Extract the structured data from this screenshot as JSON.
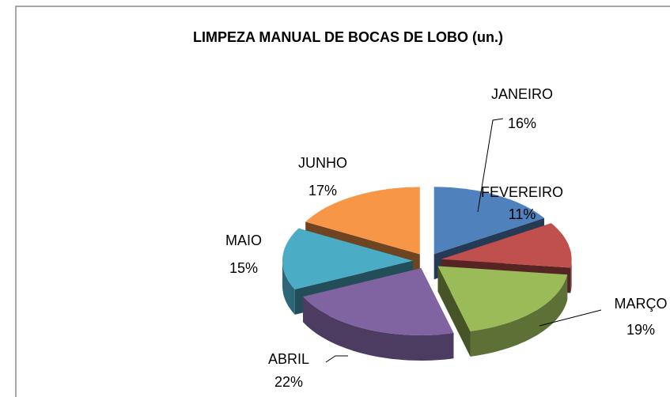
{
  "chart_data": {
    "type": "pie",
    "title": "LIMPEZA MANUAL DE BOCAS DE LOBO (un.)",
    "categories": [
      "JANEIRO",
      "FEVEREIRO",
      "MARÇO",
      "ABRIL",
      "MAIO",
      "JUNHO"
    ],
    "values": [
      16,
      11,
      19,
      22,
      15,
      17
    ],
    "value_labels": [
      "16%",
      "11%",
      "19%",
      "22%",
      "15%",
      "17%"
    ],
    "colors": [
      "#4f81bd",
      "#c0504d",
      "#9bbb59",
      "#8064a2",
      "#4bacc6",
      "#f79646"
    ]
  }
}
